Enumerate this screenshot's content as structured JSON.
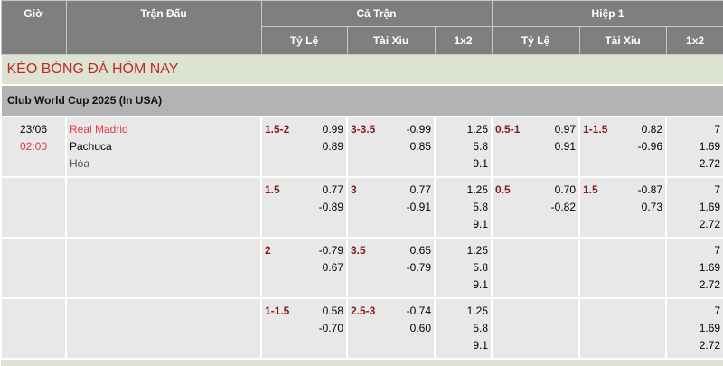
{
  "headers": {
    "time": "Giờ",
    "match": "Trận Đấu",
    "full": "Cả Trận",
    "half": "Hiệp 1",
    "sub": [
      "Tỷ Lệ",
      "Tài Xiu",
      "1x2",
      "Tỷ Lệ",
      "Tài Xiu",
      "1x2"
    ]
  },
  "title": "KÈO BÓNG ĐÁ HÔM NAY",
  "league": "Club World Cup 2025 (In USA)",
  "match": {
    "date": "23/06",
    "time": "02:00",
    "home": "Real Madrid",
    "away": "Pachuca",
    "draw": "Hòa"
  },
  "rows": [
    {
      "ft_hdp": {
        "line": "1.5-2",
        "o": [
          "0.99",
          "0.89"
        ]
      },
      "ft_ou": {
        "line": "3-3.5",
        "o": [
          "-0.99",
          "0.85"
        ]
      },
      "ft_1x2": [
        "1.25",
        "5.8",
        "9.1"
      ],
      "h1_hdp": {
        "line": "0.5-1",
        "o": [
          "0.97",
          "0.91"
        ]
      },
      "h1_ou": {
        "line": "1-1.5",
        "o": [
          "0.82",
          "-0.96"
        ]
      },
      "h1_1x2": [
        "7",
        "1.69",
        "2.72"
      ]
    },
    {
      "ft_hdp": {
        "line": "1.5",
        "o": [
          "0.77",
          "-0.89"
        ]
      },
      "ft_ou": {
        "line": "3",
        "o": [
          "0.77",
          "-0.91"
        ]
      },
      "ft_1x2": [
        "1.25",
        "5.8",
        "9.1"
      ],
      "h1_hdp": {
        "line": "0.5",
        "o": [
          "0.70",
          "-0.82"
        ]
      },
      "h1_ou": {
        "line": "1.5",
        "o": [
          "-0.87",
          "0.73"
        ]
      },
      "h1_1x2": [
        "7",
        "1.69",
        "2.72"
      ]
    },
    {
      "ft_hdp": {
        "line": "2",
        "o": [
          "-0.79",
          "0.67"
        ]
      },
      "ft_ou": {
        "line": "3.5",
        "o": [
          "0.65",
          "-0.79"
        ]
      },
      "ft_1x2": [
        "1.25",
        "5.8",
        "9.1"
      ],
      "h1_hdp": {
        "line": "",
        "o": [
          "",
          ""
        ]
      },
      "h1_ou": {
        "line": "",
        "o": [
          "",
          ""
        ]
      },
      "h1_1x2": [
        "7",
        "1.69",
        "2.72"
      ]
    },
    {
      "ft_hdp": {
        "line": "1-1.5",
        "o": [
          "0.58",
          "-0.70"
        ]
      },
      "ft_ou": {
        "line": "2.5-3",
        "o": [
          "-0.74",
          "0.60"
        ]
      },
      "ft_1x2": [
        "1.25",
        "5.8",
        "9.1"
      ],
      "h1_hdp": {
        "line": "",
        "o": [
          "",
          ""
        ]
      },
      "h1_ou": {
        "line": "",
        "o": [
          "",
          ""
        ]
      },
      "h1_1x2": [
        "7",
        "1.69",
        "2.72"
      ]
    }
  ]
}
